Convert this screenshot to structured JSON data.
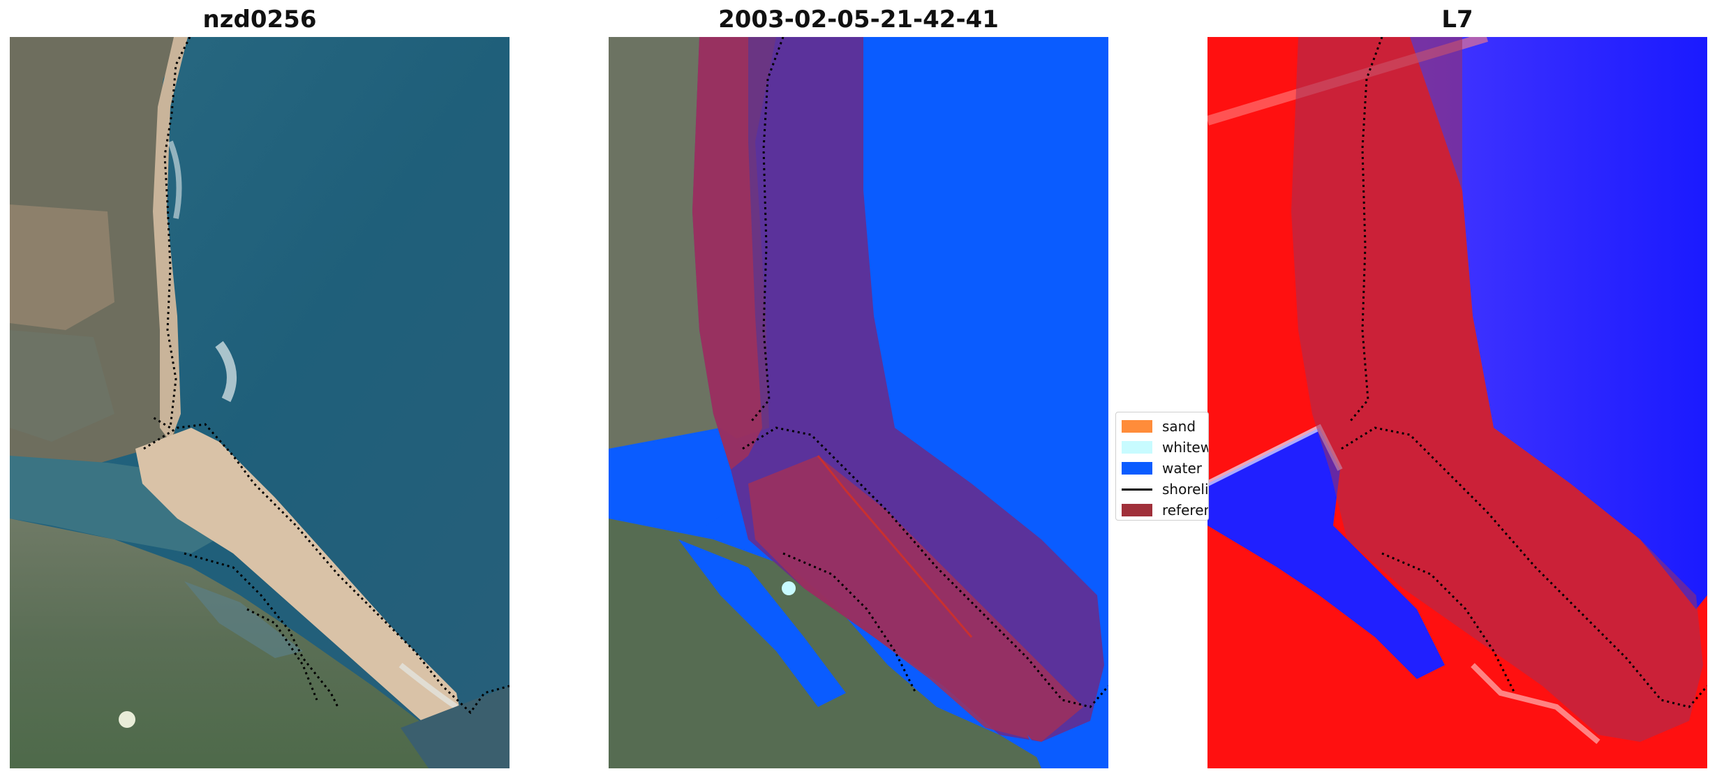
{
  "panels": [
    {
      "title": "nzd0256"
    },
    {
      "title": "2003-02-05-21-42-41"
    },
    {
      "title": "L7"
    }
  ],
  "legend": {
    "items": [
      {
        "label": "sand",
        "color": "#ff8c3a",
        "type": "patch"
      },
      {
        "label": "whitewater",
        "color": "#c8fbff",
        "type": "patch"
      },
      {
        "label": "water",
        "color": "#0a5cff",
        "type": "patch"
      },
      {
        "label": "shoreline",
        "color": "#000000",
        "type": "line"
      },
      {
        "label": "reference",
        "color": "#a0303a",
        "type": "patch"
      }
    ]
  },
  "colors": {
    "sea": "#1f5f7a",
    "land": "#5e7d5a",
    "sand": "#d8c0a4",
    "water_class": "#0a5cff",
    "reference_buffer": "#a0305a",
    "index_land": "#ff1010",
    "index_water": "#1a1aff"
  }
}
